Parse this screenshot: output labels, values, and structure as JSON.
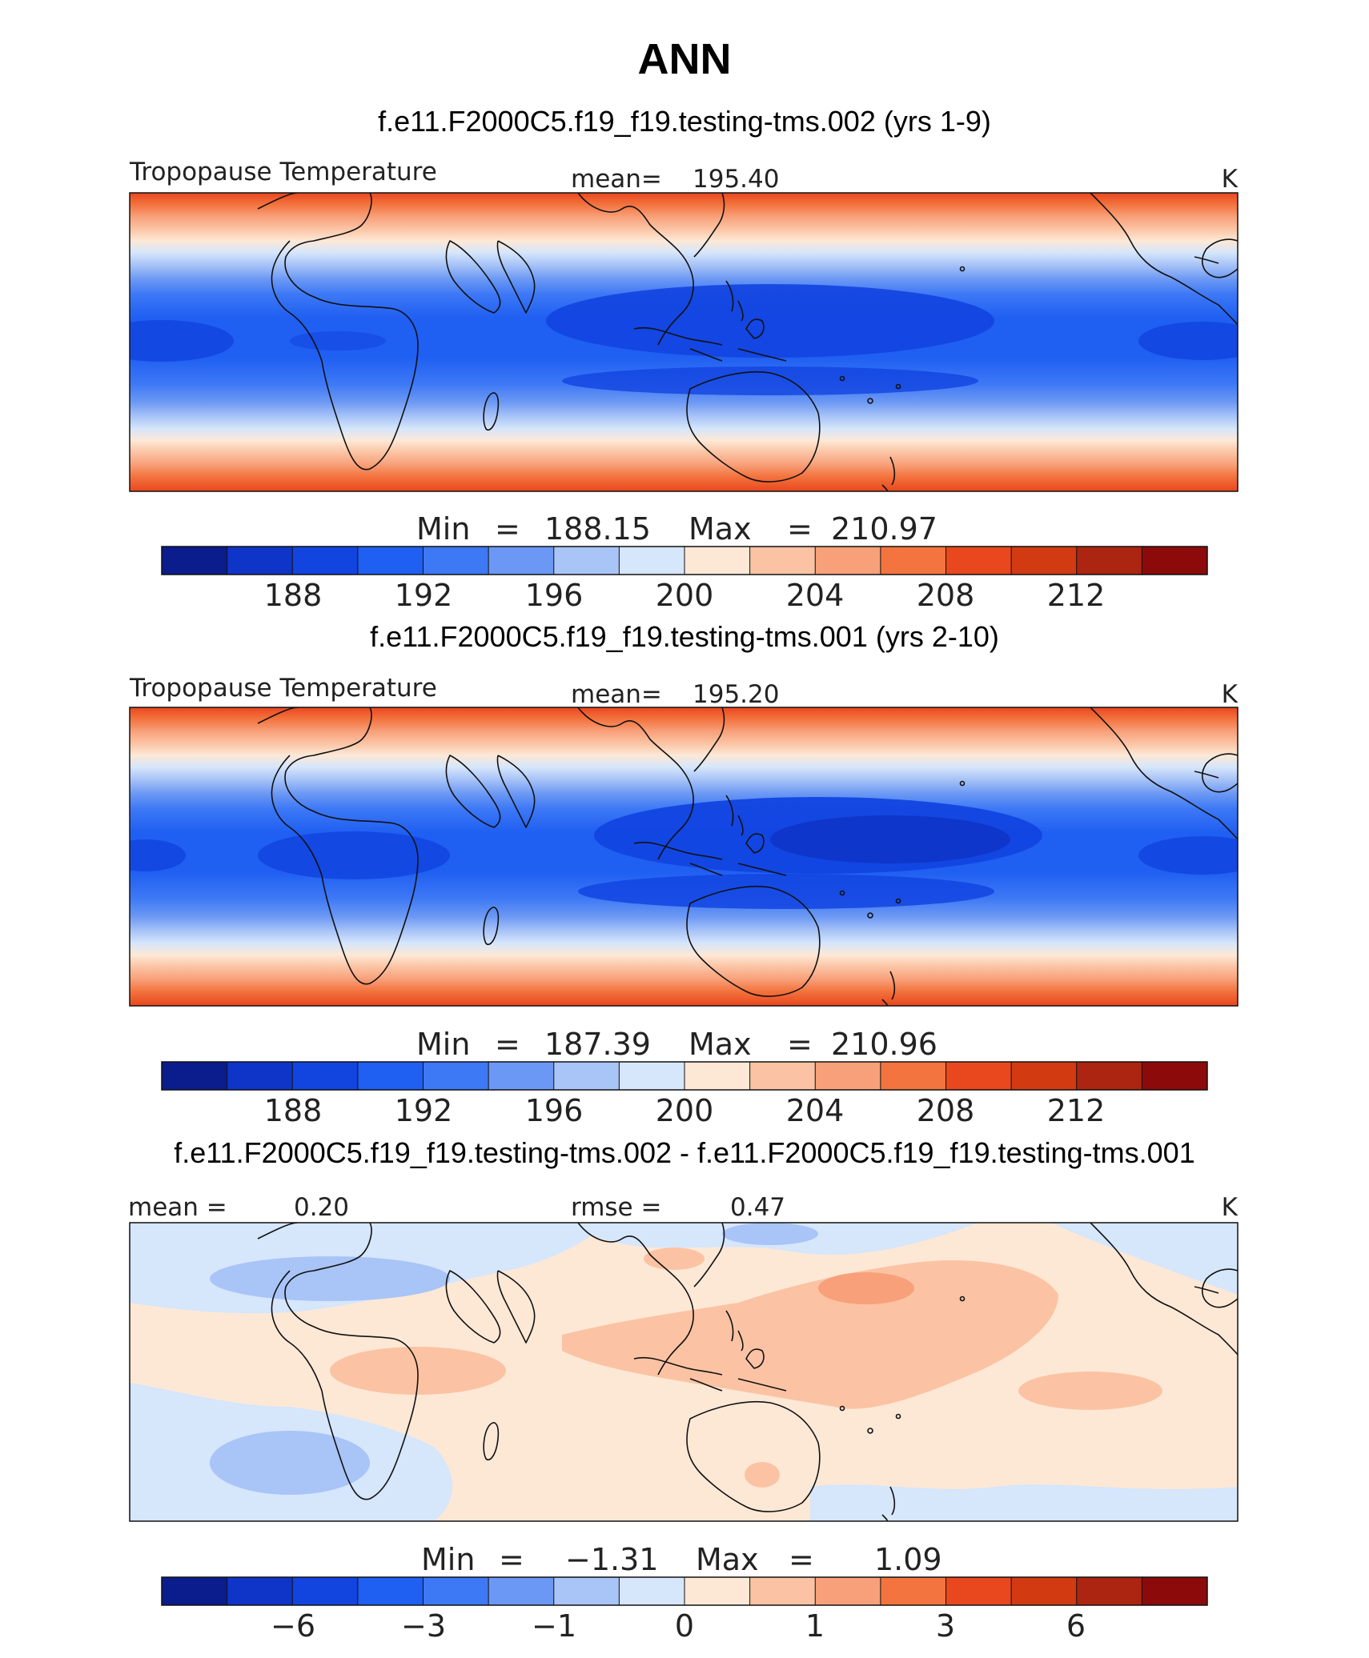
{
  "page_title": "ANN",
  "colors": {
    "absolute_scale": [
      "#0b1c8c",
      "#0f34c8",
      "#1244e0",
      "#1f5ff2",
      "#3d78f5",
      "#6b98f4",
      "#a9c4f7",
      "#d6e6fb",
      "#fde8d6",
      "#fbc3a3",
      "#f8a07a",
      "#f3743f",
      "#e9471e",
      "#d23a12",
      "#ab2510",
      "#8c0a0a"
    ],
    "difference_scale": [
      "#0b1c8c",
      "#0f34c8",
      "#1244e0",
      "#1f5ff2",
      "#3d78f5",
      "#6b98f4",
      "#a9c4f7",
      "#d6e6fb",
      "#fde8d6",
      "#fbc3a3",
      "#f8a07a",
      "#f3743f",
      "#e9471e",
      "#d23a12",
      "#ab2510",
      "#8c0a0a"
    ]
  },
  "chart_data": [
    {
      "type": "heatmap",
      "title": "f.e11.F2000C5.f19_f19.testing-tms.002 (yrs 1-9)",
      "variable": "Tropopause Temperature",
      "stat_label": "mean=",
      "mean": "195.40",
      "units": "K",
      "min_label": "Min",
      "min": "188.15",
      "max_label": "Max",
      "max": "210.97",
      "colorbar_ticks": [
        "188",
        "192",
        "196",
        "200",
        "204",
        "208",
        "212"
      ],
      "colorbar_levels": 16,
      "field": {
        "equator_min": 190,
        "pole_max": 212,
        "description_bands": "cold tropics near 188-192 K, warming to 210-212 K at the map edges"
      }
    },
    {
      "type": "heatmap",
      "title": "f.e11.F2000C5.f19_f19.testing-tms.001 (yrs 2-10)",
      "variable": "Tropopause Temperature",
      "stat_label": "mean=",
      "mean": "195.20",
      "units": "K",
      "min_label": "Min",
      "min": "187.39",
      "max_label": "Max",
      "max": "210.96",
      "colorbar_ticks": [
        "188",
        "192",
        "196",
        "200",
        "204",
        "208",
        "212"
      ],
      "colorbar_levels": 16
    },
    {
      "type": "heatmap",
      "title": "f.e11.F2000C5.f19_f19.testing-tms.002 - f.e11.F2000C5.f19_f19.testing-tms.001",
      "mean_label": "mean =",
      "mean": "0.20",
      "rmse_label": "rmse =",
      "rmse": "0.47",
      "units": "K",
      "min_label": "Min",
      "min": "−1.31",
      "max_label": "Max",
      "max": "1.09",
      "colorbar_ticks": [
        "−6",
        "−3",
        "−1",
        "0",
        "1",
        "3",
        "6"
      ],
      "colorbar_levels": 16
    }
  ]
}
